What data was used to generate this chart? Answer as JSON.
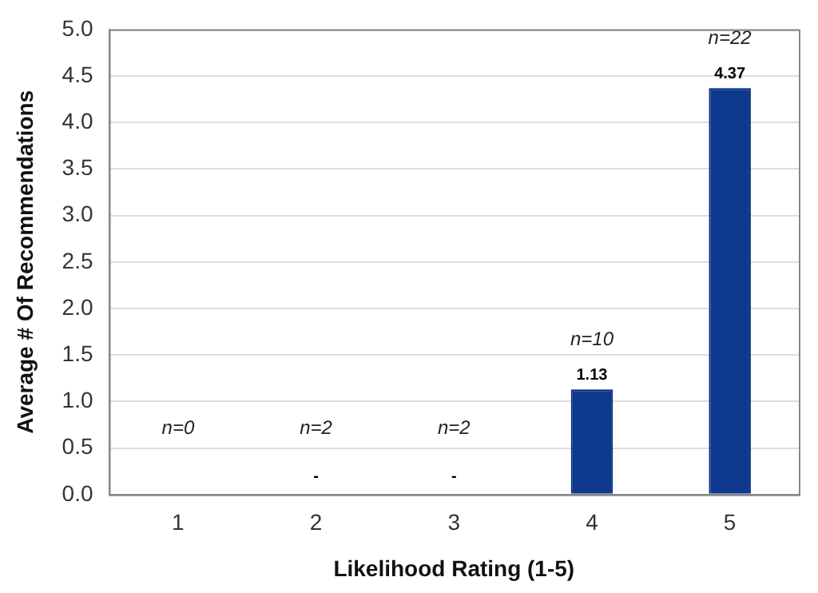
{
  "chart_data": {
    "type": "bar",
    "xlabel": "Likelihood Rating (1-5)",
    "ylabel": "Average # Of Recommendations",
    "categories": [
      "1",
      "2",
      "3",
      "4",
      "5"
    ],
    "values": [
      null,
      null,
      null,
      1.13,
      4.37
    ],
    "value_labels": [
      null,
      "-",
      "-",
      "1.13",
      "4.37"
    ],
    "color": "#0d3a8f",
    "ylim": [
      0,
      5
    ],
    "yticks": [
      {
        "value": 0,
        "label": "0.0"
      },
      {
        "value": 0.5,
        "label": "0.5"
      },
      {
        "value": 1,
        "label": "1.0"
      },
      {
        "value": 1.5,
        "label": "1.5"
      },
      {
        "value": 2,
        "label": "2.0"
      },
      {
        "value": 2.5,
        "label": "2.5"
      },
      {
        "value": 3,
        "label": "3.0"
      },
      {
        "value": 3.5,
        "label": "3.5"
      },
      {
        "value": 4,
        "label": "4.0"
      },
      {
        "value": 4.5,
        "label": "4.5"
      },
      {
        "value": 5,
        "label": "5.0"
      }
    ],
    "grid": "y",
    "annotations": [
      "n=0",
      "n=2",
      "n=2",
      "n=10",
      "n=22"
    ]
  }
}
